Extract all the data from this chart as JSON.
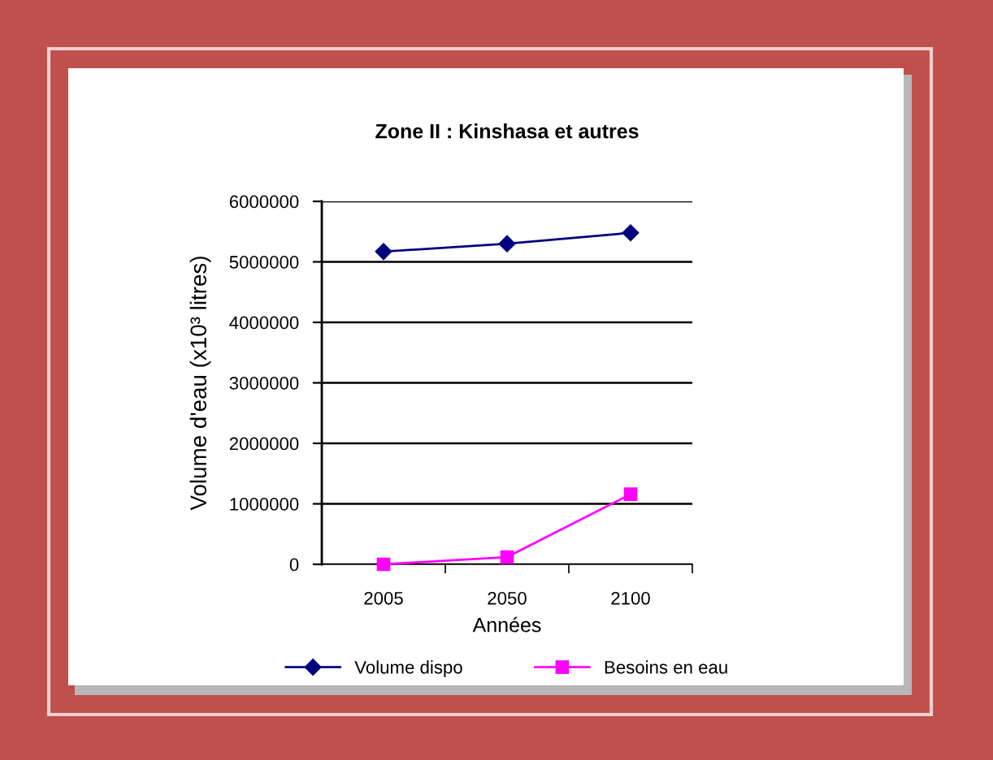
{
  "chart_data": {
    "type": "line",
    "title": "Zone II : Kinshasa et autres",
    "xlabel": "Années",
    "ylabel": "Volume d'eau (x10³ litres)",
    "categories": [
      "2005",
      "2050",
      "2100"
    ],
    "series": [
      {
        "name": "Volume dispo",
        "color": "#000080",
        "marker": "diamond",
        "values": [
          5170000,
          5300000,
          5480000
        ]
      },
      {
        "name": "Besoins en eau",
        "color": "#ff00ff",
        "marker": "square",
        "values": [
          0,
          120000,
          1160000
        ]
      }
    ],
    "ylim": [
      0,
      6000000
    ],
    "yticks": [
      0,
      1000000,
      2000000,
      3000000,
      4000000,
      5000000,
      6000000
    ],
    "grid": "y",
    "legend": "bottom",
    "line_style": "solid"
  }
}
